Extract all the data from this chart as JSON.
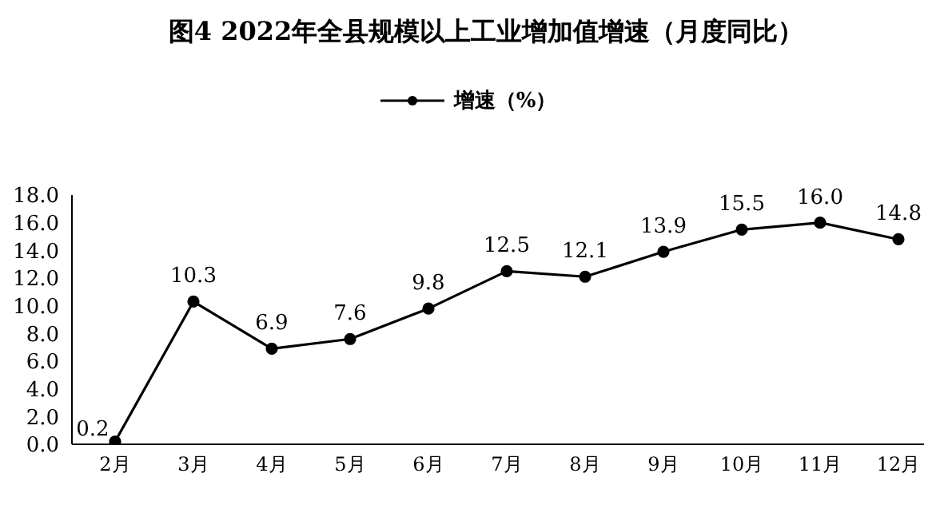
{
  "chart_data": {
    "type": "line",
    "title": "图4  2022年全县规模以上工业增加值增速（月度同比）",
    "categories": [
      "2月",
      "3月",
      "4月",
      "5月",
      "6月",
      "7月",
      "8月",
      "9月",
      "10月",
      "11月",
      "12月"
    ],
    "series": [
      {
        "name": "增速（%）",
        "color": "#000000",
        "values": [
          0.2,
          10.3,
          6.9,
          7.6,
          9.8,
          12.5,
          12.1,
          13.9,
          15.5,
          16.0,
          14.8
        ],
        "value_labels": [
          "0.2",
          "10.3",
          "6.9",
          "7.6",
          "9.8",
          "12.5",
          "12.1",
          "13.9",
          "15.5",
          "16.0",
          "14.8"
        ]
      }
    ],
    "ylim": [
      0,
      18
    ],
    "yticks": [
      {
        "value": 0,
        "label": "0.0"
      },
      {
        "value": 2,
        "label": "2.0"
      },
      {
        "value": 4,
        "label": "4.0"
      },
      {
        "value": 6,
        "label": "6.0"
      },
      {
        "value": 8,
        "label": "8.0"
      },
      {
        "value": 10,
        "label": "10.0"
      },
      {
        "value": 12,
        "label": "12.0"
      },
      {
        "value": 14,
        "label": "14.0"
      },
      {
        "value": 16,
        "label": "16.0"
      },
      {
        "value": 18,
        "label": "18.0"
      }
    ],
    "grid": false,
    "legend": "top",
    "marker": "circle",
    "line_style": "solid"
  }
}
